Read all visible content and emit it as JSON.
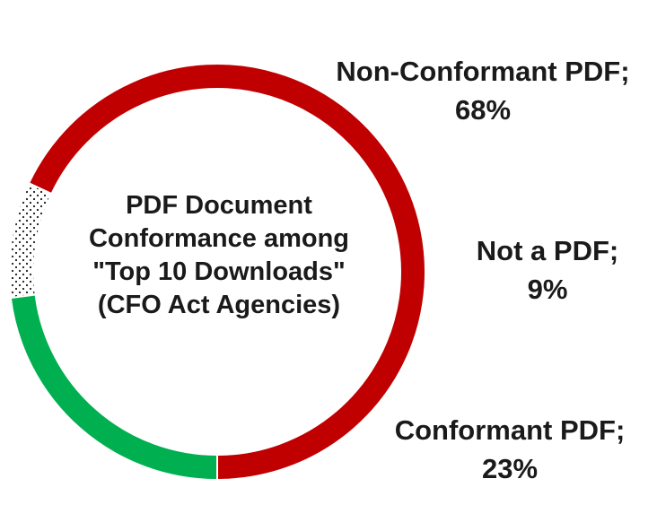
{
  "chart_data": {
    "type": "pie",
    "variant": "donut",
    "title_lines": [
      "PDF Document",
      "Conformance among",
      "\"Top 10 Downloads\"",
      "(CFO Act Agencies)"
    ],
    "slices": [
      {
        "name": "Non-Conformant PDF",
        "value": 68,
        "unit": "%",
        "color": "#c00000",
        "fill": "solid",
        "label_lines": [
          "Non-Conformant PDF;",
          "68%"
        ]
      },
      {
        "name": "Not a PDF",
        "value": 9,
        "unit": "%",
        "color": "#1a1a1a",
        "fill": "dotted",
        "label_lines": [
          "Not a PDF;",
          "9%"
        ]
      },
      {
        "name": "Conformant PDF",
        "value": 23,
        "unit": "%",
        "color": "#00b050",
        "fill": "solid",
        "label_lines": [
          "Conformant PDF;",
          "23%"
        ]
      }
    ],
    "start": "bottom",
    "direction": "counterclockwise",
    "legend": "none",
    "data_labels": "outside-right"
  }
}
